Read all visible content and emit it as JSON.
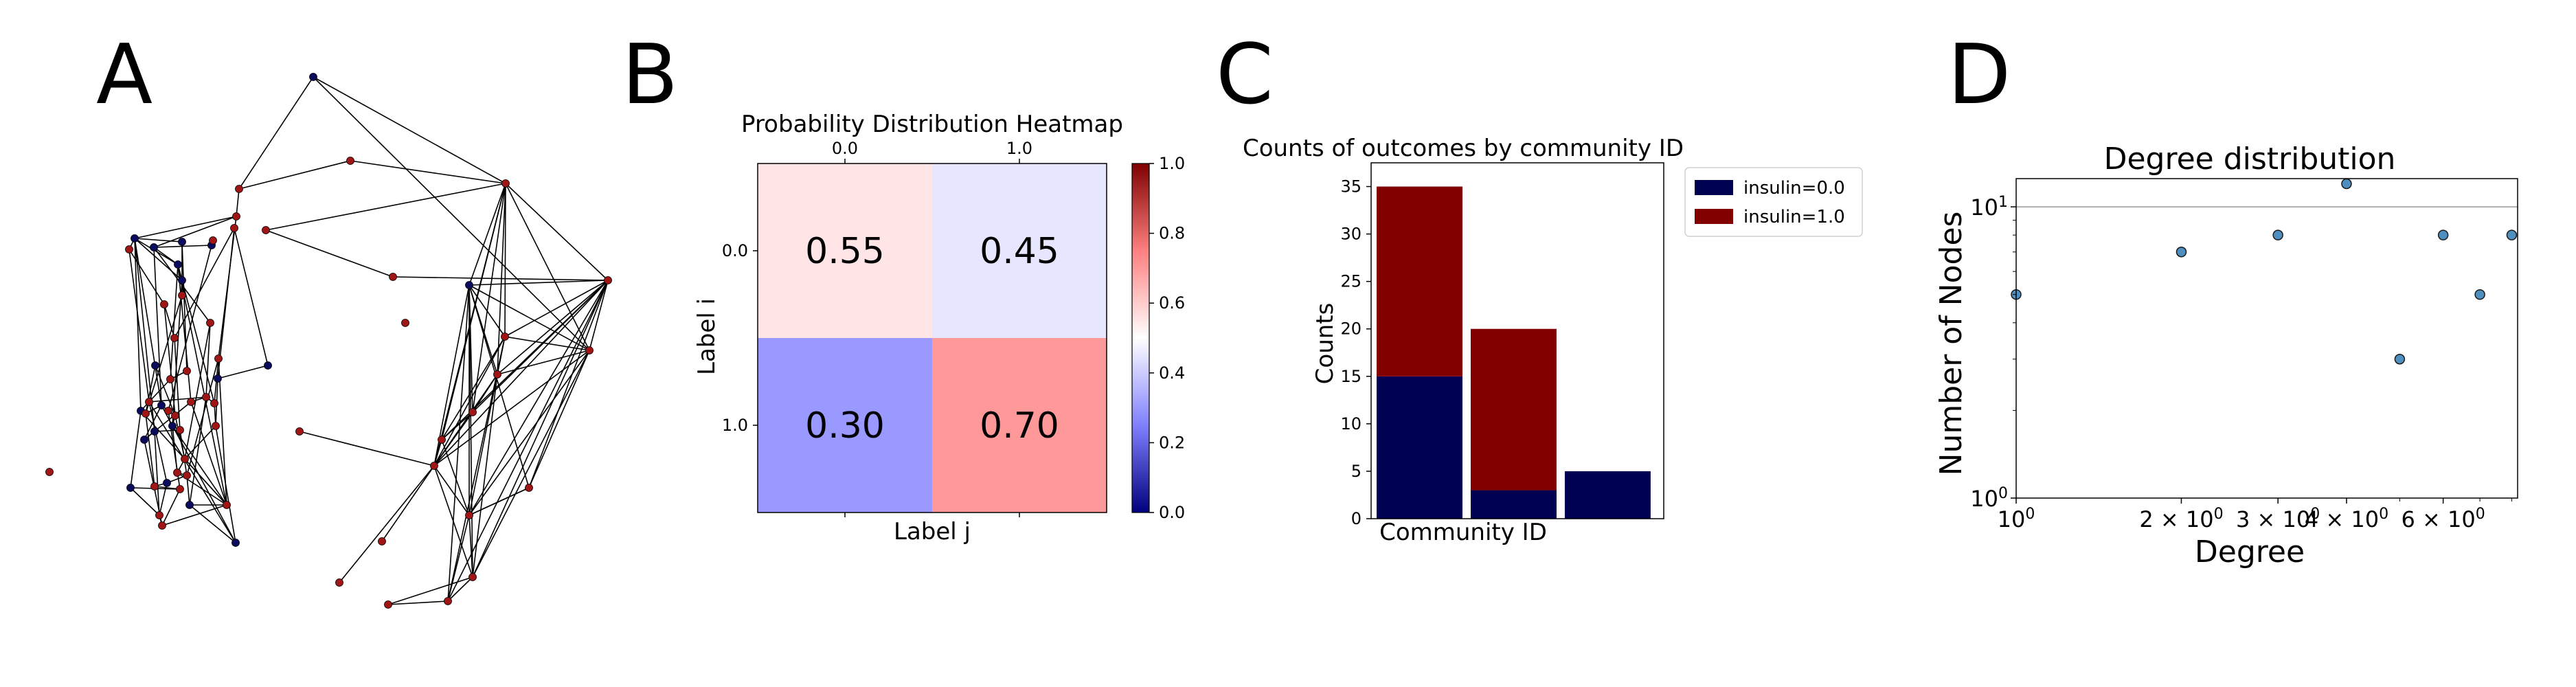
{
  "panel_labels": [
    "A",
    "B",
    "C",
    "D"
  ],
  "chart_data": [
    {
      "panel": "A",
      "type": "other",
      "description_type": "network",
      "node_colors": {
        "blue": "#0b0b5e",
        "red": "#a01515"
      }
    },
    {
      "panel": "B",
      "type": "heatmap",
      "title": "Probability Distribution Heatmap",
      "xlabel": "Label j",
      "ylabel": "Label i",
      "x_categories": [
        "0.0",
        "1.0"
      ],
      "y_categories": [
        "0.0",
        "1.0"
      ],
      "values": [
        [
          0.55,
          0.45
        ],
        [
          0.3,
          0.7
        ]
      ],
      "cell_labels": [
        [
          "0.55",
          "0.45"
        ],
        [
          "0.30",
          "0.70"
        ]
      ],
      "colormap": "bwr",
      "colorbar": {
        "range": [
          0.0,
          1.0
        ],
        "ticks": [
          "0.0",
          "0.2",
          "0.4",
          "0.6",
          "0.8",
          "1.0"
        ]
      }
    },
    {
      "panel": "C",
      "type": "bar",
      "stacked": true,
      "title": "Counts of outcomes by community ID",
      "xlabel": "Community ID",
      "ylabel": "Counts",
      "ylim": [
        0,
        37.5
      ],
      "yticks": [
        "0",
        "5",
        "10",
        "15",
        "20",
        "25",
        "30",
        "35"
      ],
      "categories": [
        "",
        "",
        ""
      ],
      "series": [
        {
          "name": "insulin=0.0",
          "color": "#000050",
          "values": [
            15,
            3,
            5
          ]
        },
        {
          "name": "insulin=1.0",
          "color": "#820000",
          "values": [
            20,
            17,
            0
          ]
        }
      ],
      "legend": "outside-right"
    },
    {
      "panel": "D",
      "type": "scatter",
      "title": "Degree distribution",
      "xlabel": "Degree",
      "ylabel": "Number of Nodes",
      "xscale": "log",
      "yscale": "log",
      "xlim": [
        1,
        8.2
      ],
      "ylim": [
        1,
        12.5
      ],
      "x_tick_labels": [
        "10^0",
        "2×10^0",
        "3×10^0",
        "4×10^0",
        "6×10^0"
      ],
      "y_tick_labels": [
        "10^0",
        "10^1"
      ],
      "hline_y": 10,
      "points": [
        {
          "x": 1,
          "y": 5
        },
        {
          "x": 2,
          "y": 7
        },
        {
          "x": 3,
          "y": 8
        },
        {
          "x": 4,
          "y": 12
        },
        {
          "x": 5,
          "y": 3
        },
        {
          "x": 6,
          "y": 8
        },
        {
          "x": 7,
          "y": 5
        },
        {
          "x": 8,
          "y": 8
        }
      ],
      "marker_color": "#4f8fc0"
    }
  ]
}
